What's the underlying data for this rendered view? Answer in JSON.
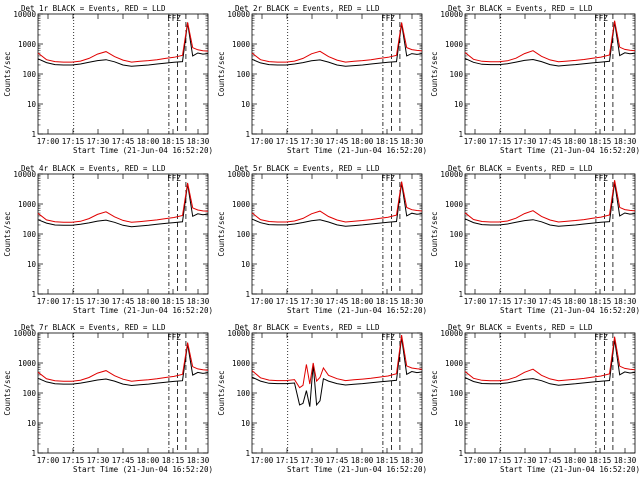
{
  "figure": {
    "xlabel": "Start Time (21-Jun-04 16:52:20)",
    "ylabel": "Counts/sec",
    "x_tick_labels": [
      "17:00",
      "17:15",
      "17:30",
      "17:45",
      "18:00",
      "18:15",
      "18:30"
    ],
    "y_tick_labels": [
      "1",
      "10",
      "100",
      "1000",
      "10000"
    ],
    "marker_label": "FFZ",
    "colors": {
      "events": "#000000",
      "lld": "#e00000",
      "background": "#ffffff"
    }
  },
  "chart_data": [
    {
      "type": "line",
      "title": "Det 1r BLACK = Events, RED = LLD",
      "xlabel": "Start Time (21-Jun-04 16:52:20)",
      "ylabel": "Counts/sec",
      "xlim": [
        0,
        100
      ],
      "ylim": [
        1,
        10000
      ],
      "yscale": "log",
      "x": [
        0,
        5,
        10,
        15,
        20,
        25,
        30,
        35,
        40,
        45,
        50,
        55,
        60,
        65,
        70,
        75,
        80,
        85,
        88,
        91,
        94,
        97,
        100
      ],
      "series": [
        {
          "name": "Events",
          "values": [
            320,
            240,
            205,
            200,
            200,
            215,
            245,
            280,
            300,
            255,
            200,
            180,
            190,
            200,
            215,
            230,
            245,
            260,
            5000,
            400,
            500,
            460,
            480
          ]
        },
        {
          "name": "LLD",
          "values": [
            500,
            300,
            260,
            250,
            250,
            270,
            330,
            460,
            560,
            380,
            290,
            250,
            265,
            280,
            300,
            330,
            360,
            420,
            5300,
            750,
            640,
            600,
            580
          ]
        }
      ]
    },
    {
      "type": "line",
      "title": "Det 2r BLACK = Events, RED = LLD",
      "xlabel": "Start Time (21-Jun-04 16:52:20)",
      "ylabel": "Counts/sec",
      "xlim": [
        0,
        100
      ],
      "ylim": [
        1,
        10000
      ],
      "yscale": "log",
      "x": [
        0,
        5,
        10,
        15,
        20,
        25,
        30,
        35,
        40,
        45,
        50,
        55,
        60,
        65,
        70,
        75,
        80,
        85,
        88,
        91,
        94,
        97,
        100
      ],
      "series": [
        {
          "name": "Events",
          "values": [
            310,
            235,
            205,
            200,
            200,
            215,
            240,
            275,
            295,
            250,
            200,
            180,
            190,
            200,
            215,
            230,
            245,
            260,
            4800,
            400,
            480,
            450,
            470
          ]
        },
        {
          "name": "LLD",
          "values": [
            500,
            300,
            260,
            250,
            250,
            270,
            330,
            470,
            570,
            380,
            290,
            250,
            265,
            280,
            300,
            330,
            360,
            420,
            5200,
            760,
            650,
            610,
            590
          ]
        }
      ]
    },
    {
      "type": "line",
      "title": "Det 3r BLACK = Events, RED = LLD",
      "xlabel": "Start Time (21-Jun-04 16:52:20)",
      "ylabel": "Counts/sec",
      "xlim": [
        0,
        100
      ],
      "ylim": [
        1,
        10000
      ],
      "yscale": "log",
      "x": [
        0,
        5,
        10,
        15,
        20,
        25,
        30,
        35,
        40,
        45,
        50,
        55,
        60,
        65,
        70,
        75,
        80,
        85,
        88,
        91,
        94,
        97,
        100
      ],
      "series": [
        {
          "name": "Events",
          "values": [
            330,
            245,
            210,
            205,
            205,
            220,
            250,
            285,
            305,
            260,
            205,
            185,
            195,
            205,
            220,
            235,
            250,
            265,
            5400,
            410,
            510,
            470,
            490
          ]
        },
        {
          "name": "LLD",
          "values": [
            520,
            310,
            265,
            255,
            255,
            275,
            335,
            480,
            600,
            390,
            295,
            255,
            270,
            285,
            305,
            335,
            365,
            430,
            6000,
            780,
            660,
            620,
            600
          ]
        }
      ]
    },
    {
      "type": "line",
      "title": "Det 4r BLACK = Events, RED = LLD",
      "xlabel": "Start Time (21-Jun-04 16:52:20)",
      "ylabel": "Counts/sec",
      "xlim": [
        0,
        100
      ],
      "ylim": [
        1,
        10000
      ],
      "yscale": "log",
      "x": [
        0,
        5,
        10,
        15,
        20,
        25,
        30,
        35,
        40,
        45,
        50,
        55,
        60,
        65,
        70,
        75,
        80,
        85,
        88,
        91,
        94,
        97,
        100
      ],
      "series": [
        {
          "name": "Events",
          "values": [
            300,
            230,
            200,
            195,
            195,
            210,
            235,
            270,
            290,
            245,
            195,
            175,
            185,
            195,
            210,
            225,
            240,
            255,
            4600,
            390,
            470,
            440,
            460
          ]
        },
        {
          "name": "LLD",
          "values": [
            490,
            295,
            255,
            245,
            245,
            265,
            325,
            450,
            550,
            375,
            285,
            245,
            260,
            275,
            295,
            325,
            355,
            415,
            5000,
            740,
            630,
            590,
            570
          ]
        }
      ]
    },
    {
      "type": "line",
      "title": "Det 5r BLACK = Events, RED = LLD",
      "xlabel": "Start Time (21-Jun-04 16:52:20)",
      "ylabel": "Counts/sec",
      "xlim": [
        0,
        100
      ],
      "ylim": [
        1,
        10000
      ],
      "yscale": "log",
      "x": [
        0,
        5,
        10,
        15,
        20,
        25,
        30,
        35,
        40,
        45,
        50,
        55,
        60,
        65,
        70,
        75,
        80,
        85,
        88,
        91,
        94,
        97,
        100
      ],
      "series": [
        {
          "name": "Events",
          "values": [
            315,
            238,
            206,
            201,
            201,
            216,
            242,
            278,
            298,
            252,
            201,
            181,
            191,
            201,
            216,
            231,
            246,
            261,
            5000,
            402,
            495,
            455,
            475
          ]
        },
        {
          "name": "LLD",
          "values": [
            505,
            302,
            262,
            252,
            252,
            272,
            332,
            470,
            580,
            382,
            292,
            252,
            267,
            282,
            302,
            332,
            362,
            425,
            5600,
            765,
            645,
            605,
            585
          ]
        }
      ]
    },
    {
      "type": "line",
      "title": "Det 6r BLACK = Events, RED = LLD",
      "xlabel": "Start Time (21-Jun-04 16:52:20)",
      "ylabel": "Counts/sec",
      "xlim": [
        0,
        100
      ],
      "ylim": [
        1,
        10000
      ],
      "yscale": "log",
      "x": [
        0,
        5,
        10,
        15,
        20,
        25,
        30,
        35,
        40,
        45,
        50,
        55,
        60,
        65,
        70,
        75,
        80,
        85,
        88,
        91,
        94,
        97,
        100
      ],
      "series": [
        {
          "name": "Events",
          "values": [
            320,
            240,
            205,
            200,
            200,
            215,
            245,
            280,
            300,
            255,
            200,
            180,
            190,
            200,
            215,
            230,
            245,
            260,
            5200,
            400,
            500,
            460,
            480
          ]
        },
        {
          "name": "LLD",
          "values": [
            510,
            305,
            262,
            252,
            252,
            272,
            335,
            480,
            600,
            385,
            292,
            252,
            267,
            282,
            302,
            335,
            365,
            430,
            6200,
            770,
            650,
            610,
            590
          ]
        }
      ]
    },
    {
      "type": "line",
      "title": "Det 7r BLACK = Events, RED = LLD",
      "xlabel": "Start Time (21-Jun-04 16:52:20)",
      "ylabel": "Counts/sec",
      "xlim": [
        0,
        100
      ],
      "ylim": [
        1,
        10000
      ],
      "yscale": "log",
      "x": [
        0,
        5,
        10,
        15,
        20,
        25,
        30,
        35,
        40,
        45,
        50,
        55,
        60,
        65,
        70,
        75,
        80,
        85,
        88,
        91,
        94,
        97,
        100
      ],
      "series": [
        {
          "name": "Events",
          "values": [
            310,
            235,
            203,
            198,
            198,
            213,
            240,
            272,
            292,
            250,
            198,
            178,
            188,
            198,
            213,
            228,
            243,
            258,
            4300,
            395,
            485,
            450,
            470
          ]
        },
        {
          "name": "LLD",
          "values": [
            495,
            298,
            258,
            248,
            248,
            268,
            328,
            460,
            560,
            378,
            288,
            248,
            263,
            278,
            298,
            328,
            358,
            418,
            4800,
            750,
            635,
            595,
            575
          ]
        }
      ]
    },
    {
      "type": "line",
      "title": "Det 8r BLACK = Events, RED = LLD",
      "xlabel": "Start Time (21-Jun-04 16:52:20)",
      "ylabel": "Counts/sec",
      "xlim": [
        0,
        100
      ],
      "ylim": [
        1,
        10000
      ],
      "yscale": "log",
      "x": [
        0,
        5,
        10,
        15,
        20,
        25,
        28,
        30,
        32,
        34,
        36,
        38,
        40,
        42,
        45,
        50,
        55,
        60,
        65,
        70,
        75,
        80,
        85,
        88,
        91,
        94,
        97,
        100
      ],
      "series": [
        {
          "name": "Events",
          "values": [
            340,
            250,
            210,
            205,
            205,
            215,
            40,
            45,
            120,
            35,
            900,
            40,
            55,
            300,
            250,
            205,
            185,
            195,
            205,
            220,
            235,
            250,
            265,
            7000,
            420,
            520,
            480,
            500
          ]
        },
        {
          "name": "LLD",
          "values": [
            560,
            320,
            270,
            260,
            260,
            280,
            150,
            180,
            900,
            200,
            1000,
            250,
            330,
            680,
            390,
            300,
            260,
            275,
            290,
            310,
            340,
            370,
            440,
            8500,
            800,
            680,
            640,
            620
          ]
        }
      ]
    },
    {
      "type": "line",
      "title": "Det 9r BLACK = Events, RED = LLD",
      "xlabel": "Start Time (21-Jun-04 16:52:20)",
      "ylabel": "Counts/sec",
      "xlim": [
        0,
        100
      ],
      "ylim": [
        1,
        10000
      ],
      "yscale": "log",
      "x": [
        0,
        5,
        10,
        15,
        20,
        25,
        30,
        35,
        40,
        45,
        50,
        55,
        60,
        65,
        70,
        75,
        80,
        85,
        88,
        91,
        94,
        97,
        100
      ],
      "series": [
        {
          "name": "Events",
          "values": [
            325,
            242,
            207,
            202,
            202,
            217,
            247,
            283,
            303,
            257,
            202,
            182,
            192,
            202,
            217,
            232,
            247,
            262,
            6000,
            405,
            505,
            465,
            485
          ]
        },
        {
          "name": "LLD",
          "values": [
            520,
            310,
            266,
            256,
            256,
            276,
            338,
            490,
            620,
            390,
            296,
            256,
            271,
            286,
            306,
            338,
            368,
            436,
            7500,
            780,
            660,
            620,
            600
          ]
        }
      ]
    }
  ]
}
